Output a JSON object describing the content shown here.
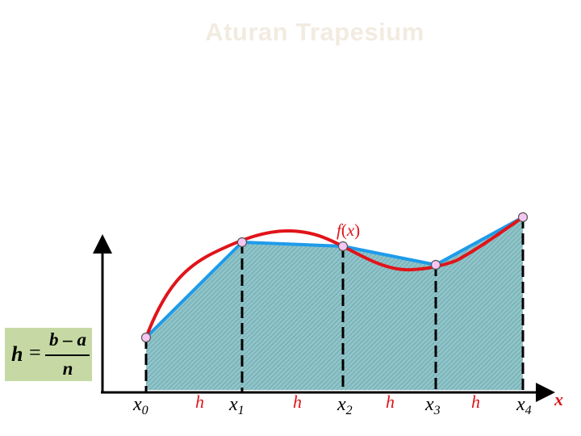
{
  "slide": {
    "title": "Aturan Trapesium"
  },
  "curve": {
    "label_f": "f",
    "label_open": "(",
    "label_var": "x",
    "label_close": ")",
    "color": "#e0141a"
  },
  "trapezoids": {
    "edge_color": "#1e9bea",
    "fill_color": "#8fc4c9",
    "node_color": "#f6c6f2"
  },
  "axis": {
    "x_label": "x",
    "nodes": [
      {
        "base": "x",
        "sub": "0"
      },
      {
        "base": "x",
        "sub": "1"
      },
      {
        "base": "x",
        "sub": "2"
      },
      {
        "base": "x",
        "sub": "3"
      },
      {
        "base": "x",
        "sub": "4"
      }
    ],
    "step_label": "h"
  },
  "formula": {
    "lhs": "h",
    "eq": "=",
    "numerator": "b – a",
    "denominator": "n",
    "box_color": "#c6d9a4"
  }
}
